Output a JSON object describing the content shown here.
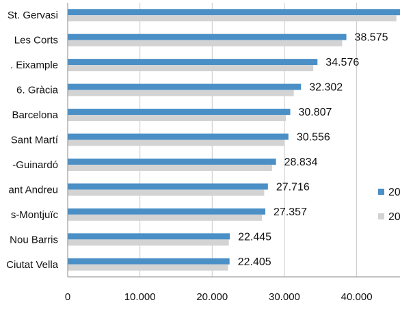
{
  "chart_data": {
    "type": "bar",
    "orientation": "horizontal",
    "categories": [
      "St. Gervasi",
      "Les Corts",
      ". Eixample",
      "6. Gràcia",
      "Barcelona",
      "Sant Martí",
      "-Guinardó",
      "ant Andreu",
      "s-Montjuïc",
      "Nou Barris",
      "Ciutat Vella"
    ],
    "series": [
      {
        "name": "20",
        "color": "#4a8fc6",
        "values": [
          46000,
          38575,
          34576,
          32302,
          30807,
          30556,
          28834,
          27716,
          27357,
          22445,
          22405
        ],
        "labels": [
          "",
          "38.575",
          "34.576",
          "32.302",
          "30.807",
          "30.556",
          "28.834",
          "27.716",
          "27.357",
          "22.445",
          "22.405"
        ]
      },
      {
        "name": "20",
        "color": "#d3d3d3",
        "values": [
          45500,
          38000,
          34000,
          31300,
          30200,
          30000,
          28300,
          27200,
          26900,
          22300,
          22200
        ]
      }
    ],
    "xlim": [
      0,
      46000
    ],
    "xticks": [
      0,
      10000,
      20000,
      30000,
      40000
    ],
    "xtick_labels": [
      "0",
      "10.000",
      "20.000",
      "30.000",
      "40.000"
    ],
    "grid": true,
    "legend": "right"
  }
}
